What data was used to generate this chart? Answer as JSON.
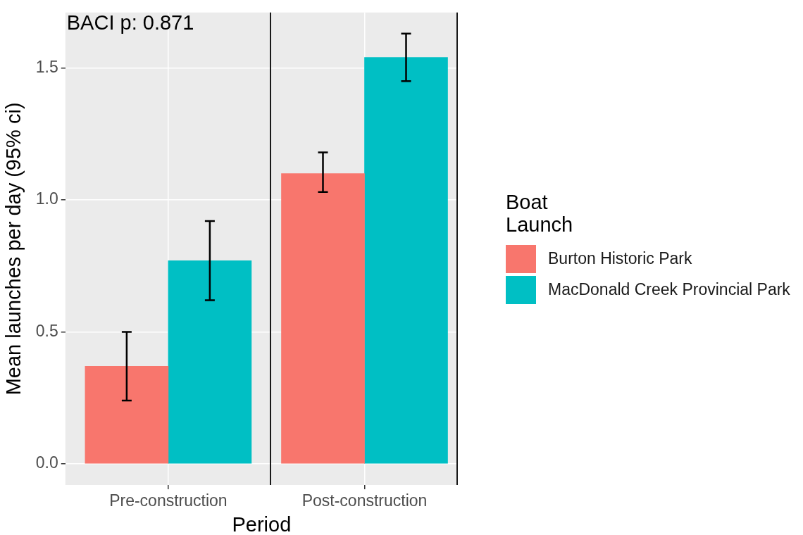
{
  "chart_data": [
    {
      "type": "bar",
      "xlabel": "Period",
      "ylabel": "Mean launches per day (95% ci)",
      "categories": [
        "Pre-construction"
      ],
      "series": [
        {
          "color": "#f8766d",
          "values": [
            0.37
          ],
          "errors": [
            [
              0.24,
              0.5
            ]
          ]
        },
        {
          "color": "#00bfc4",
          "values": [
            0.77
          ],
          "errors": [
            [
              0.62,
              0.92
            ]
          ]
        }
      ],
      "ylim": [
        -0.08,
        1.71
      ],
      "yticks": [
        {
          "value": 0,
          "label": "0.0"
        },
        0.5,
        {
          "value": 1,
          "label": "1.0"
        },
        1.5
      ],
      "grid": true,
      "annotations": [
        "BACI p: 0.871"
      ]
    },
    {
      "type": "bar",
      "legend_title": "Boat Launch",
      "categories": [
        "Post-construction"
      ],
      "series": [
        {
          "name": "Burton Historic Park",
          "color": "#f8766d",
          "values": [
            1.1
          ],
          "errors": [
            [
              1.03,
              1.18
            ]
          ]
        },
        {
          "name": "MacDonald Creek Provincial Park",
          "color": "#00bfc4",
          "values": [
            1.54
          ],
          "errors": [
            [
              1.45,
              1.63
            ]
          ]
        }
      ],
      "ylim": [
        -0.08,
        1.71
      ],
      "yticks": [
        0,
        0.5,
        1,
        1.5
      ],
      "tick_labels": "x",
      "grid": true,
      "legend": "right"
    }
  ]
}
